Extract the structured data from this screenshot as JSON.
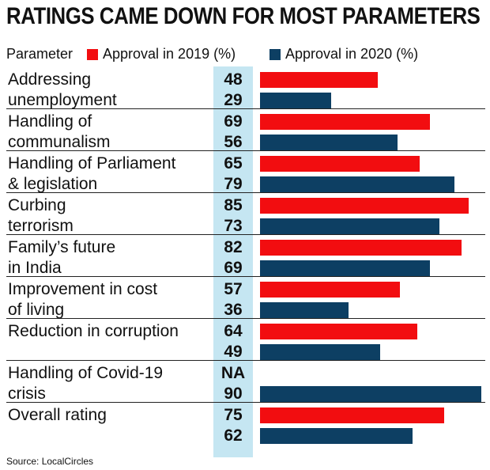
{
  "title": "RATINGS CAME DOWN FOR MOST PARAMETERS",
  "legend": {
    "param_label": "Parameter",
    "s2019_label": "Approval in 2019 (%)",
    "s2020_label": "Approval in 2020 (%)"
  },
  "colors": {
    "s2019": "#f20d10",
    "s2020": "#0d3f63",
    "value_column": "#c5e6f2"
  },
  "source": "Source: LocalCircles",
  "chart_data": {
    "type": "bar",
    "title": "RATINGS CAME DOWN FOR MOST PARAMETERS",
    "xlabel": "",
    "ylabel": "",
    "xlim": [
      0,
      90
    ],
    "categories": [
      [
        "Addressing",
        "unemployment"
      ],
      [
        "Handling of",
        "communalism"
      ],
      [
        "Handling of Parliament",
        "& legislation"
      ],
      [
        "Curbing",
        "terrorism"
      ],
      [
        "Family’s future",
        "in India"
      ],
      [
        "Improvement in cost",
        "of living"
      ],
      [
        "Reduction in corruption",
        ""
      ],
      [
        "Handling of Covid-19",
        "crisis"
      ],
      [
        "Overall rating",
        ""
      ]
    ],
    "series": [
      {
        "name": "Approval in 2019 (%)",
        "values": [
          48,
          69,
          65,
          85,
          82,
          57,
          64,
          null,
          75
        ],
        "labels": [
          "48",
          "69",
          "65",
          "85",
          "82",
          "57",
          "64",
          "NA",
          "75"
        ]
      },
      {
        "name": "Approval in 2020 (%)",
        "values": [
          29,
          56,
          79,
          73,
          69,
          36,
          49,
          90,
          62
        ],
        "labels": [
          "29",
          "56",
          "79",
          "73",
          "69",
          "36",
          "49",
          "90",
          "62"
        ]
      }
    ]
  }
}
